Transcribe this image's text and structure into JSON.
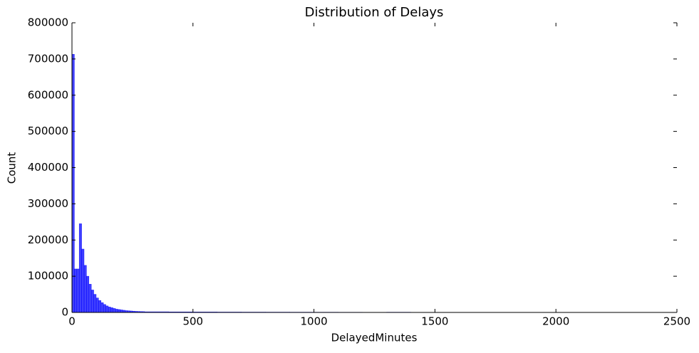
{
  "chart_data": {
    "type": "histogram",
    "title": "Distribution of Delays",
    "x_label": "DelayedMinutes",
    "y_label": "Count",
    "bins": [
      0,
      10,
      20,
      30,
      40,
      50,
      60,
      70,
      80,
      90,
      100,
      110,
      120,
      130,
      140,
      150,
      160,
      170,
      180,
      190,
      200,
      210,
      220,
      230,
      240,
      250,
      260,
      270,
      280,
      290,
      300,
      400,
      500,
      600,
      700,
      800,
      900,
      1000,
      1100,
      1200,
      1300,
      1400,
      1500,
      1600,
      1700,
      1800,
      1900,
      2000,
      2100,
      2200,
      2300,
      2400,
      2500
    ],
    "values": [
      713000,
      120000,
      120000,
      245000,
      175000,
      130000,
      100000,
      78000,
      62000,
      50000,
      40000,
      33000,
      27000,
      22000,
      18000,
      15000,
      13000,
      11000,
      9000,
      8000,
      7000,
      6000,
      5000,
      4500,
      4000,
      3500,
      3000,
      2800,
      2500,
      2300,
      1800,
      1500,
      1300,
      1100,
      1000,
      900,
      800,
      700,
      600,
      500,
      700,
      400,
      300,
      200,
      200,
      150,
      100,
      100,
      100,
      80,
      50,
      300
    ],
    "color": "#0000ff",
    "xlim": [
      0,
      2500
    ],
    "xticks": [
      0,
      500,
      1000,
      1500,
      2000,
      2500
    ],
    "ylim": [
      0,
      800000
    ],
    "yticks": [
      0,
      100000,
      200000,
      300000,
      400000,
      500000,
      600000,
      700000,
      800000
    ]
  }
}
